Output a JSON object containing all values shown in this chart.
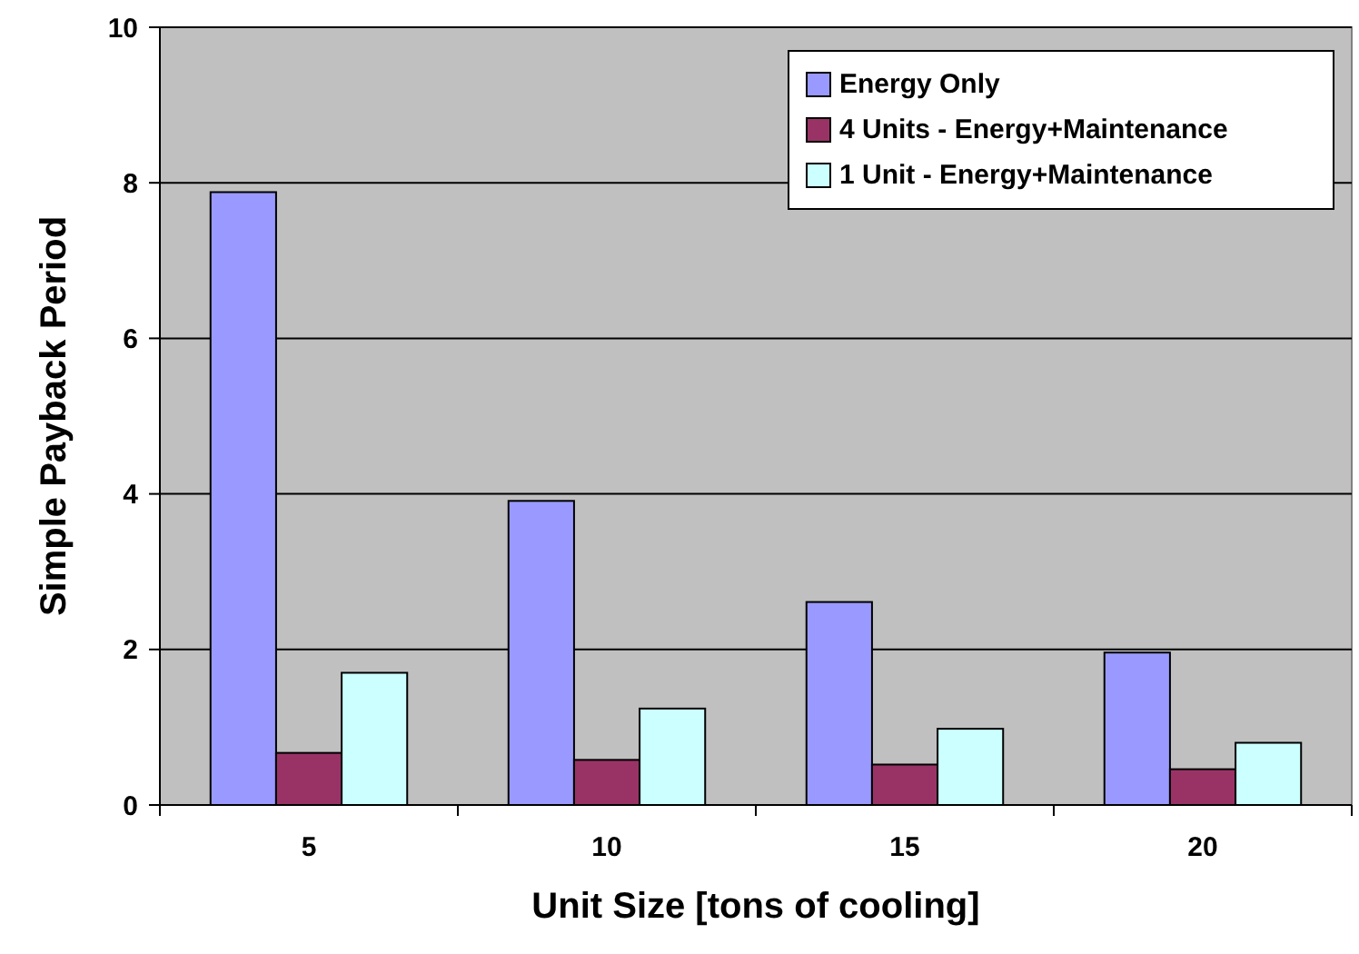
{
  "chart_data": {
    "type": "bar",
    "xlabel": "Unit Size [tons of cooling]",
    "ylabel": "Simple Payback Period",
    "categories": [
      "5",
      "10",
      "15",
      "20"
    ],
    "series": [
      {
        "name": "Energy Only",
        "color": "#9999ff",
        "values": [
          7.88,
          3.91,
          2.61,
          1.96
        ]
      },
      {
        "name": "4 Units - Energy+Maintenance",
        "color": "#993366",
        "values": [
          0.67,
          0.58,
          0.52,
          0.46
        ]
      },
      {
        "name": "1 Unit - Energy+Maintenance",
        "color": "#ccffff",
        "values": [
          1.7,
          1.24,
          0.98,
          0.8
        ]
      }
    ],
    "ylim": [
      0,
      10
    ],
    "yticks": [
      0,
      2,
      4,
      6,
      8,
      10
    ],
    "grid": "y",
    "legend": "top right"
  }
}
